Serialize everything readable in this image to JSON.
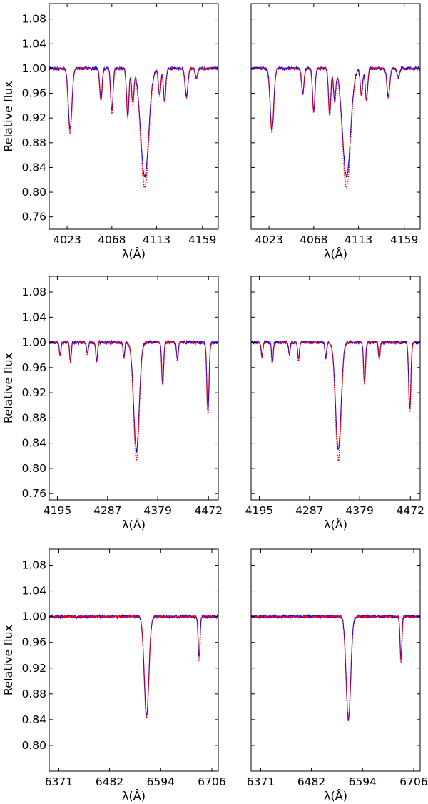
{
  "figure": {
    "ylabel": "Relative flux",
    "xlabel": "λ(Å)"
  },
  "legend_colors": {
    "observed": "#0000ff",
    "model": "#ff0000"
  },
  "chart_data": [
    {
      "type": "line",
      "row": 1,
      "col": 1,
      "xlim": [
        4005,
        4175
      ],
      "ylim": [
        0.74,
        1.105
      ],
      "xticks": [
        4023,
        4068,
        4113,
        4159
      ],
      "yticks": [
        0.76,
        0.8,
        0.84,
        0.88,
        0.92,
        0.96,
        1.0,
        1.04,
        1.08
      ],
      "ytick_labels_shown": true,
      "xlabel": "λ(Å)",
      "ylabel": "Relative flux",
      "lines": [
        {
          "x": 4026,
          "depth": 0.098,
          "width": 1.8
        },
        {
          "x": 4057,
          "depth": 0.05,
          "width": 1.2
        },
        {
          "x": 4068,
          "depth": 0.068,
          "width": 1.2
        },
        {
          "x": 4084,
          "depth": 0.076,
          "width": 1.2
        },
        {
          "x": 4089,
          "depth": 0.052,
          "width": 1.2
        },
        {
          "x": 4101,
          "depth": 0.185,
          "width": 4.0
        },
        {
          "x": 4116,
          "depth": 0.042,
          "width": 1.2
        },
        {
          "x": 4121,
          "depth": 0.052,
          "width": 1.2
        },
        {
          "x": 4143,
          "depth": 0.045,
          "width": 1.4
        },
        {
          "x": 4153,
          "depth": 0.015,
          "width": 1.2
        }
      ],
      "series": [
        {
          "color": "#0000ff",
          "style": "solid",
          "min": 0.825
        },
        {
          "color": "#ff0000",
          "style": "dotted",
          "min": 0.807
        }
      ]
    },
    {
      "type": "line",
      "row": 1,
      "col": 2,
      "xlim": [
        4005,
        4175
      ],
      "ylim": [
        0.74,
        1.105
      ],
      "xticks": [
        4023,
        4068,
        4113,
        4159
      ],
      "yticks": [
        0.76,
        0.8,
        0.84,
        0.88,
        0.92,
        0.96,
        1.0,
        1.04,
        1.08
      ],
      "ytick_labels_shown": false,
      "xlabel": "λ(Å)",
      "lines": [
        {
          "x": 4026,
          "depth": 0.098,
          "width": 1.8
        },
        {
          "x": 4057,
          "depth": 0.04,
          "width": 1.2
        },
        {
          "x": 4068,
          "depth": 0.068,
          "width": 1.2
        },
        {
          "x": 4084,
          "depth": 0.072,
          "width": 1.2
        },
        {
          "x": 4089,
          "depth": 0.05,
          "width": 1.2
        },
        {
          "x": 4101,
          "depth": 0.19,
          "width": 4.0
        },
        {
          "x": 4116,
          "depth": 0.042,
          "width": 1.2
        },
        {
          "x": 4121,
          "depth": 0.05,
          "width": 1.2
        },
        {
          "x": 4143,
          "depth": 0.045,
          "width": 1.4
        },
        {
          "x": 4153,
          "depth": 0.015,
          "width": 1.2
        }
      ],
      "series": [
        {
          "color": "#0000ff",
          "style": "solid",
          "min": 0.825
        },
        {
          "color": "#ff0000",
          "style": "dotted",
          "min": 0.806
        }
      ]
    },
    {
      "type": "line",
      "row": 2,
      "col": 1,
      "xlim": [
        4180,
        4490
      ],
      "ylim": [
        0.75,
        1.105
      ],
      "xticks": [
        4195,
        4287,
        4379,
        4472
      ],
      "yticks": [
        0.76,
        0.8,
        0.84,
        0.88,
        0.92,
        0.96,
        1.0,
        1.04,
        1.08
      ],
      "ytick_labels_shown": true,
      "xlabel": "λ(Å)",
      "ylabel": "Relative flux",
      "lines": [
        {
          "x": 4200,
          "depth": 0.02,
          "width": 1.5
        },
        {
          "x": 4219,
          "depth": 0.03,
          "width": 1.5
        },
        {
          "x": 4250,
          "depth": 0.018,
          "width": 1.5
        },
        {
          "x": 4267,
          "depth": 0.03,
          "width": 1.5
        },
        {
          "x": 4317,
          "depth": 0.022,
          "width": 1.5
        },
        {
          "x": 4340,
          "depth": 0.186,
          "width": 5.0
        },
        {
          "x": 4388,
          "depth": 0.065,
          "width": 1.8
        },
        {
          "x": 4415,
          "depth": 0.028,
          "width": 1.5
        },
        {
          "x": 4471,
          "depth": 0.108,
          "width": 2.0
        }
      ],
      "series": [
        {
          "color": "#0000ff",
          "style": "solid",
          "min": 0.828
        },
        {
          "color": "#ff0000",
          "style": "dotted",
          "min": 0.813
        }
      ]
    },
    {
      "type": "line",
      "row": 2,
      "col": 2,
      "xlim": [
        4180,
        4490
      ],
      "ylim": [
        0.75,
        1.105
      ],
      "xticks": [
        4195,
        4287,
        4379,
        4472
      ],
      "yticks": [
        0.76,
        0.8,
        0.84,
        0.88,
        0.92,
        0.96,
        1.0,
        1.04,
        1.08
      ],
      "ytick_labels_shown": false,
      "xlabel": "λ(Å)",
      "lines": [
        {
          "x": 4200,
          "depth": 0.022,
          "width": 1.5
        },
        {
          "x": 4219,
          "depth": 0.032,
          "width": 1.5
        },
        {
          "x": 4250,
          "depth": 0.018,
          "width": 1.5
        },
        {
          "x": 4267,
          "depth": 0.028,
          "width": 1.5
        },
        {
          "x": 4317,
          "depth": 0.025,
          "width": 1.5
        },
        {
          "x": 4340,
          "depth": 0.188,
          "width": 5.0
        },
        {
          "x": 4388,
          "depth": 0.063,
          "width": 1.8
        },
        {
          "x": 4415,
          "depth": 0.025,
          "width": 1.5
        },
        {
          "x": 4471,
          "depth": 0.106,
          "width": 2.0
        }
      ],
      "series": [
        {
          "color": "#0000ff",
          "style": "solid",
          "min": 0.83
        },
        {
          "color": "#ff0000",
          "style": "dotted",
          "min": 0.812
        }
      ]
    },
    {
      "type": "line",
      "row": 3,
      "col": 1,
      "xlim": [
        6350,
        6720
      ],
      "ylim": [
        0.76,
        1.105
      ],
      "xticks": [
        6371,
        6482,
        6594,
        6706
      ],
      "yticks": [
        0.8,
        0.84,
        0.88,
        0.92,
        0.96,
        1.0,
        1.04,
        1.08
      ],
      "ytick_labels_shown": true,
      "xlabel": "λ(Å)",
      "ylabel": "Relative flux",
      "lines": [
        {
          "x": 6563,
          "depth": 0.156,
          "width": 5.0
        },
        {
          "x": 6678,
          "depth": 0.064,
          "width": 2.0
        }
      ],
      "series": [
        {
          "color": "#0000ff",
          "style": "solid",
          "min": 0.846
        },
        {
          "color": "#ff0000",
          "style": "dotted",
          "min": 0.843
        }
      ]
    },
    {
      "type": "line",
      "row": 3,
      "col": 2,
      "xlim": [
        6350,
        6720
      ],
      "ylim": [
        0.76,
        1.105
      ],
      "xticks": [
        6371,
        6482,
        6594,
        6706
      ],
      "yticks": [
        0.8,
        0.84,
        0.88,
        0.92,
        0.96,
        1.0,
        1.04,
        1.08
      ],
      "ytick_labels_shown": false,
      "xlabel": "λ(Å)",
      "lines": [
        {
          "x": 6563,
          "depth": 0.158,
          "width": 5.0
        },
        {
          "x": 6678,
          "depth": 0.066,
          "width": 2.0
        }
      ],
      "series": [
        {
          "color": "#0000ff",
          "style": "solid",
          "min": 0.84
        },
        {
          "color": "#ff0000",
          "style": "dotted",
          "min": 0.842
        }
      ]
    }
  ]
}
